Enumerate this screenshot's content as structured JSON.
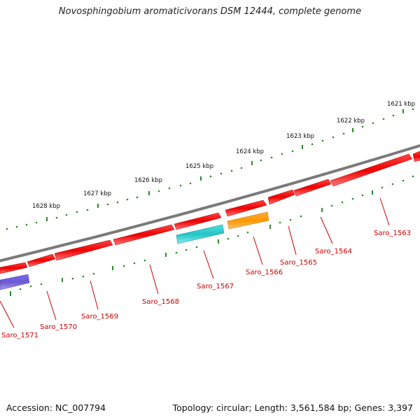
{
  "title": "Novosphingobium aromaticivorans DSM 12444, complete genome",
  "accession": "Accession: NC_007794",
  "summary": "Topology: circular; Length: 3,561,584 bp; Genes: 3,397",
  "colors": {
    "backbone": "#7a7a7a",
    "gene_red": "#ee0000",
    "gene_cyan": "#22cccc",
    "gene_orange": "#ff9900",
    "gene_purple": "#6a5acd",
    "tick_green": "#2a8a2a",
    "label_red": "#cc0000"
  },
  "kbp_markers": [
    {
      "label": "1621 kbp"
    },
    {
      "label": "1622 kbp"
    },
    {
      "label": "1623 kbp"
    },
    {
      "label": "1624 kbp"
    },
    {
      "label": "1625 kbp"
    },
    {
      "label": "1626 kbp"
    },
    {
      "label": "1627 kbp"
    },
    {
      "label": "1628 kbp"
    }
  ],
  "genes": [
    {
      "label": "Saro_1563",
      "color": "red"
    },
    {
      "label": "Saro_1564",
      "color": "red"
    },
    {
      "label": "Saro_1565",
      "color": "red"
    },
    {
      "label": "Saro_1566",
      "color": "orange"
    },
    {
      "label": "Saro_1567",
      "color": "cyan"
    },
    {
      "label": "Saro_1568",
      "color": "red"
    },
    {
      "label": "Saro_1569",
      "color": "red"
    },
    {
      "label": "Saro_1570",
      "color": "red"
    },
    {
      "label": "Saro_1571",
      "color": "purple"
    }
  ]
}
